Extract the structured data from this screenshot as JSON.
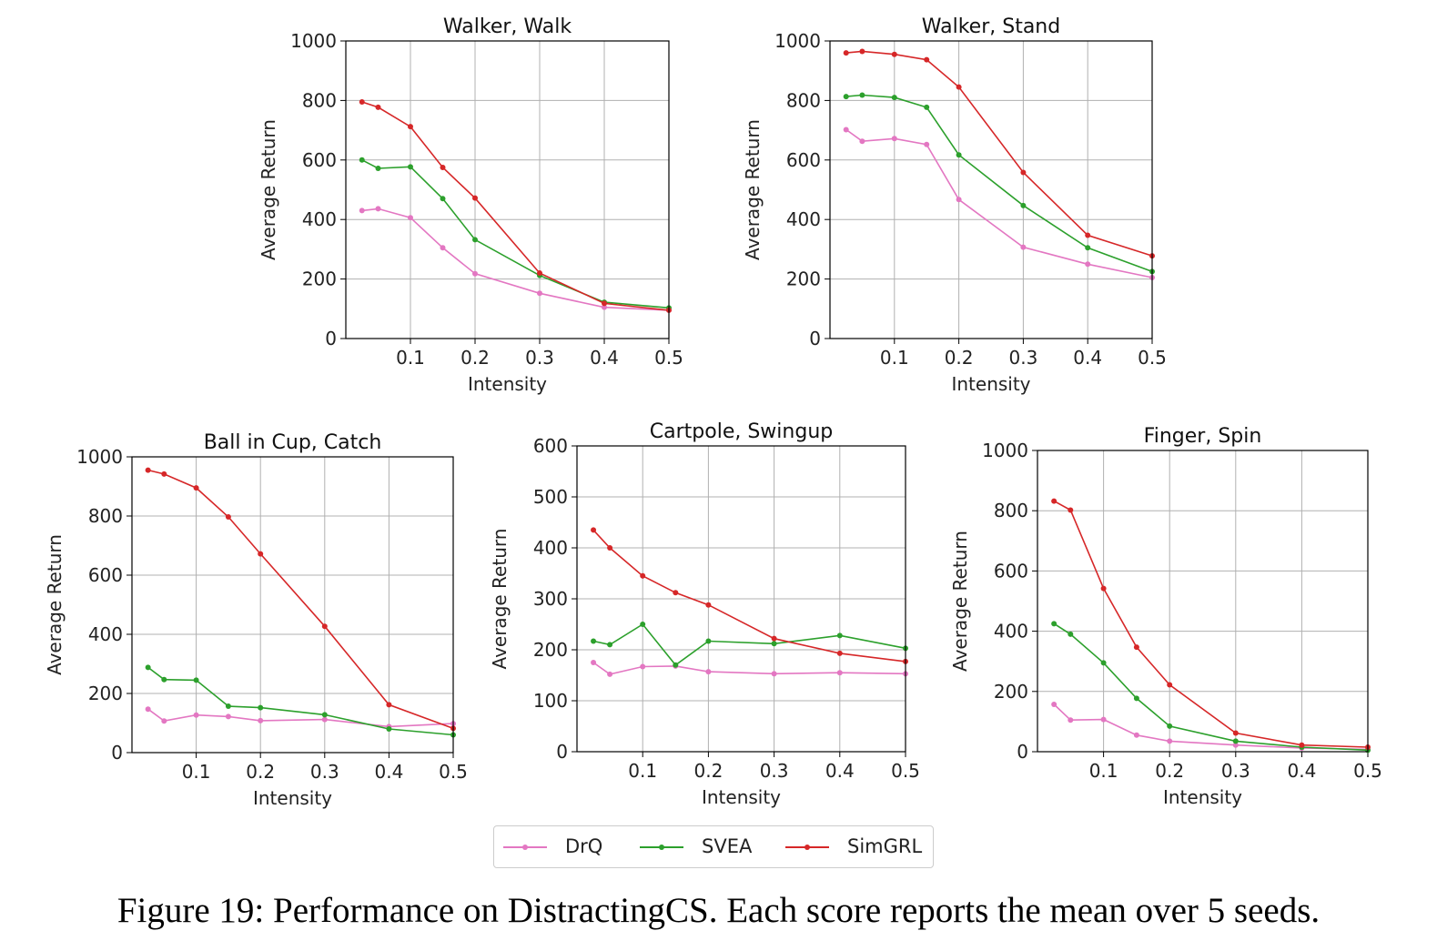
{
  "caption": "Figure 19: Performance on DistractingCS. Each score reports the mean over 5 seeds.",
  "legend": [
    {
      "name": "DrQ",
      "color": "#e377c2"
    },
    {
      "name": "SVEA",
      "color": "#2ca02c"
    },
    {
      "name": "SimGRL",
      "color": "#d62728"
    }
  ],
  "chart_data": [
    {
      "type": "line",
      "title": "Walker, Walk",
      "xlabel": "Intensity",
      "ylabel": "Average Return",
      "x": [
        0.025,
        0.05,
        0.1,
        0.15,
        0.2,
        0.3,
        0.4,
        0.5
      ],
      "xticks": [
        "0.1",
        "0.2",
        "0.3",
        "0.4",
        "0.5"
      ],
      "yticks": [
        "0",
        "200",
        "400",
        "600",
        "800",
        "1000"
      ],
      "xlim": [
        0.0,
        0.5
      ],
      "ylim": [
        0,
        1000
      ],
      "grid": true,
      "series": [
        {
          "name": "DrQ",
          "values": [
            430,
            436,
            406,
            305,
            218,
            152,
            105,
            95
          ]
        },
        {
          "name": "SVEA",
          "values": [
            600,
            572,
            577,
            470,
            332,
            212,
            122,
            103
          ]
        },
        {
          "name": "SimGRL",
          "values": [
            795,
            777,
            712,
            575,
            472,
            220,
            118,
            95
          ]
        }
      ]
    },
    {
      "type": "line",
      "title": "Walker, Stand",
      "xlabel": "Intensity",
      "ylabel": "Average Return",
      "x": [
        0.025,
        0.05,
        0.1,
        0.15,
        0.2,
        0.3,
        0.4,
        0.5
      ],
      "xticks": [
        "0.1",
        "0.2",
        "0.3",
        "0.4",
        "0.5"
      ],
      "yticks": [
        "0",
        "200",
        "400",
        "600",
        "800",
        "1000"
      ],
      "xlim": [
        0.0,
        0.5
      ],
      "ylim": [
        0,
        1000
      ],
      "grid": true,
      "series": [
        {
          "name": "DrQ",
          "values": [
            702,
            663,
            672,
            652,
            467,
            307,
            250,
            205
          ]
        },
        {
          "name": "SVEA",
          "values": [
            813,
            818,
            810,
            777,
            617,
            447,
            305,
            225
          ]
        },
        {
          "name": "SimGRL",
          "values": [
            960,
            965,
            955,
            937,
            845,
            558,
            347,
            278
          ]
        }
      ]
    },
    {
      "type": "line",
      "title": "Ball in Cup, Catch",
      "xlabel": "Intensity",
      "ylabel": "Average Return",
      "x": [
        0.025,
        0.05,
        0.1,
        0.15,
        0.2,
        0.3,
        0.4,
        0.5
      ],
      "xticks": [
        "0.1",
        "0.2",
        "0.3",
        "0.4",
        "0.5"
      ],
      "yticks": [
        "0",
        "200",
        "400",
        "600",
        "800",
        "1000"
      ],
      "xlim": [
        0.0,
        0.5
      ],
      "ylim": [
        0,
        1000
      ],
      "grid": true,
      "series": [
        {
          "name": "DrQ",
          "values": [
            147,
            107,
            127,
            122,
            108,
            112,
            88,
            98
          ]
        },
        {
          "name": "SVEA",
          "values": [
            288,
            247,
            245,
            157,
            152,
            128,
            80,
            60
          ]
        },
        {
          "name": "SimGRL",
          "values": [
            955,
            942,
            895,
            797,
            672,
            427,
            162,
            82
          ]
        }
      ]
    },
    {
      "type": "line",
      "title": "Cartpole, Swingup",
      "xlabel": "Intensity",
      "ylabel": "Average Return",
      "x": [
        0.025,
        0.05,
        0.1,
        0.15,
        0.2,
        0.3,
        0.4,
        0.5
      ],
      "xticks": [
        "0.1",
        "0.2",
        "0.3",
        "0.4",
        "0.5"
      ],
      "yticks": [
        "0",
        "100",
        "200",
        "300",
        "400",
        "500",
        "600"
      ],
      "xlim": [
        0.0,
        0.5
      ],
      "ylim": [
        0,
        600
      ],
      "grid": true,
      "series": [
        {
          "name": "DrQ",
          "values": [
            175,
            152,
            167,
            168,
            157,
            153,
            155,
            153
          ]
        },
        {
          "name": "SVEA",
          "values": [
            217,
            210,
            250,
            170,
            217,
            212,
            228,
            203
          ]
        },
        {
          "name": "SimGRL",
          "values": [
            435,
            400,
            345,
            312,
            288,
            222,
            193,
            177
          ]
        }
      ]
    },
    {
      "type": "line",
      "title": "Finger, Spin",
      "xlabel": "Intensity",
      "ylabel": "Average Return",
      "x": [
        0.025,
        0.05,
        0.1,
        0.15,
        0.2,
        0.3,
        0.4,
        0.5
      ],
      "xticks": [
        "0.1",
        "0.2",
        "0.3",
        "0.4",
        "0.5"
      ],
      "yticks": [
        "0",
        "200",
        "400",
        "600",
        "800",
        "1000"
      ],
      "xlim": [
        0.0,
        0.5
      ],
      "ylim": [
        0,
        1000
      ],
      "grid": true,
      "series": [
        {
          "name": "DrQ",
          "values": [
            157,
            105,
            107,
            55,
            35,
            22,
            12,
            8
          ]
        },
        {
          "name": "SVEA",
          "values": [
            425,
            390,
            295,
            177,
            85,
            35,
            15,
            5
          ]
        },
        {
          "name": "SimGRL",
          "values": [
            832,
            802,
            542,
            347,
            222,
            62,
            22,
            15
          ]
        }
      ]
    }
  ]
}
